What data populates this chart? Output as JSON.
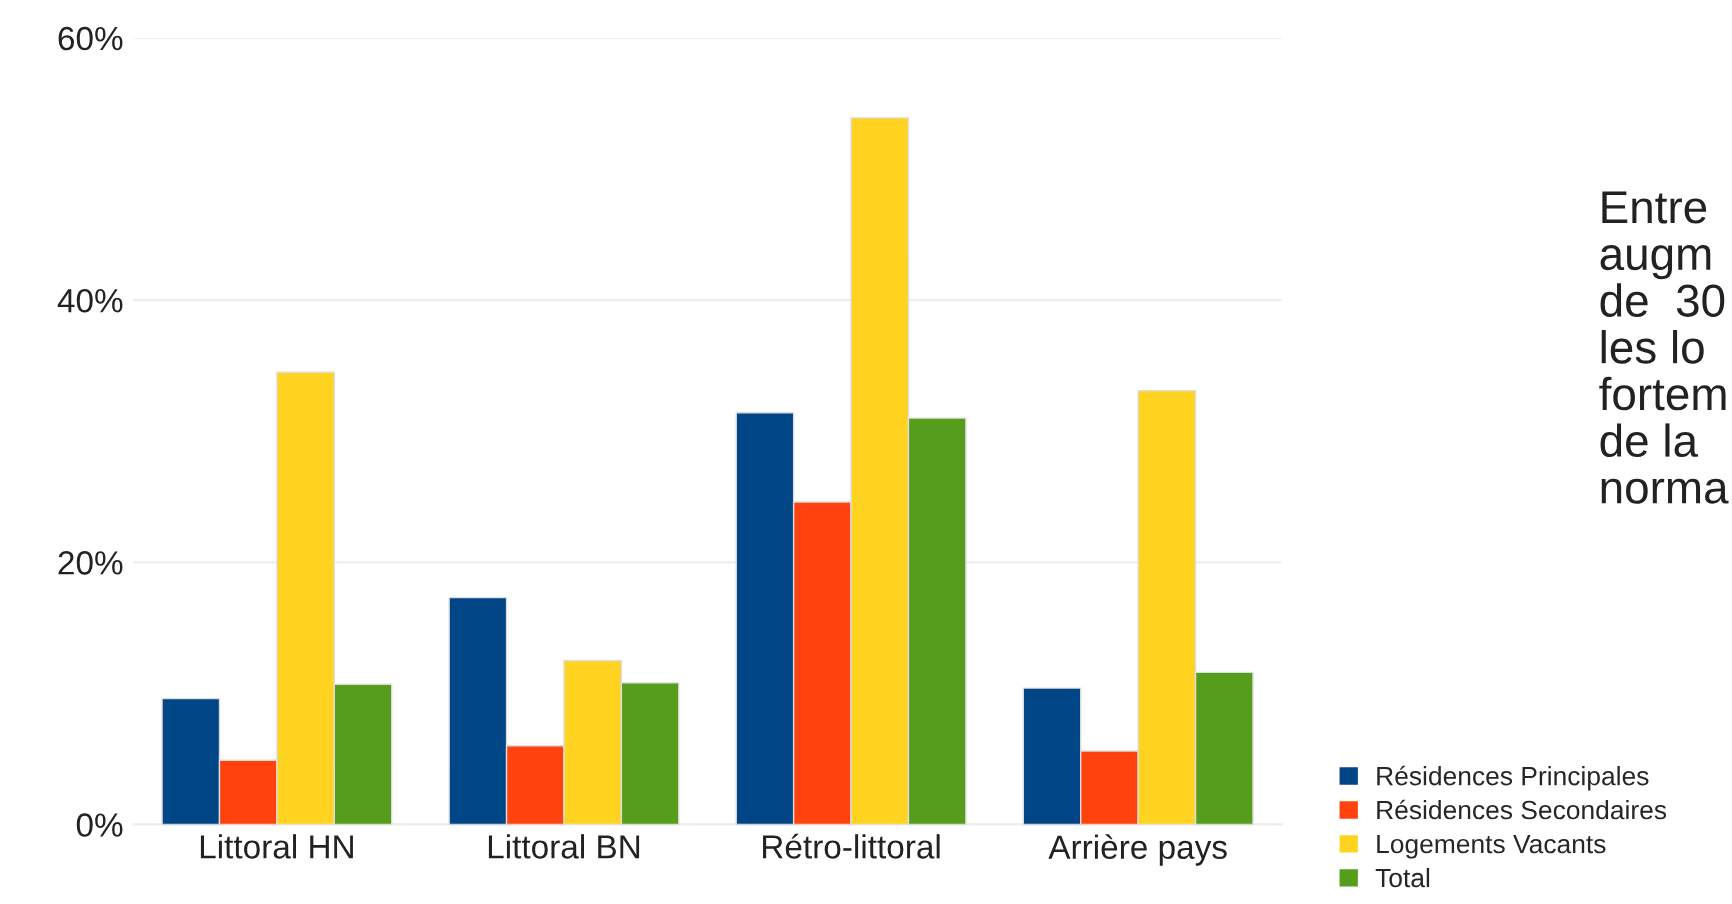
{
  "chart_data": {
    "type": "bar",
    "categories": [
      "Littoral HN",
      "Littoral BN",
      "Rétro-littoral",
      "Arrière pays"
    ],
    "series": [
      {
        "name": "Résidences Principales",
        "color": "#004586",
        "values": [
          9.6,
          17.3,
          31.4,
          10.4
        ]
      },
      {
        "name": "Résidences Secondaires",
        "color": "#ff420e",
        "values": [
          4.9,
          6.0,
          24.6,
          5.6
        ]
      },
      {
        "name": "Logements Vacants",
        "color": "#ffd320",
        "values": [
          34.5,
          12.5,
          53.9,
          33.1
        ]
      },
      {
        "name": "Total",
        "color": "#579d1c",
        "values": [
          10.7,
          10.8,
          31.0,
          11.6
        ]
      }
    ],
    "ylim": [
      0,
      60
    ],
    "yticks": [
      {
        "value": 0,
        "label": "0%"
      },
      {
        "value": 20,
        "label": "20%"
      },
      {
        "value": 40,
        "label": "40%"
      },
      {
        "value": 60,
        "label": "60%"
      }
    ],
    "grid": "y",
    "legend": "bottom right",
    "annotations": [
      "Entre\naugm\nde  30\nles lo\nfortem\nde la\nnorma"
    ]
  }
}
